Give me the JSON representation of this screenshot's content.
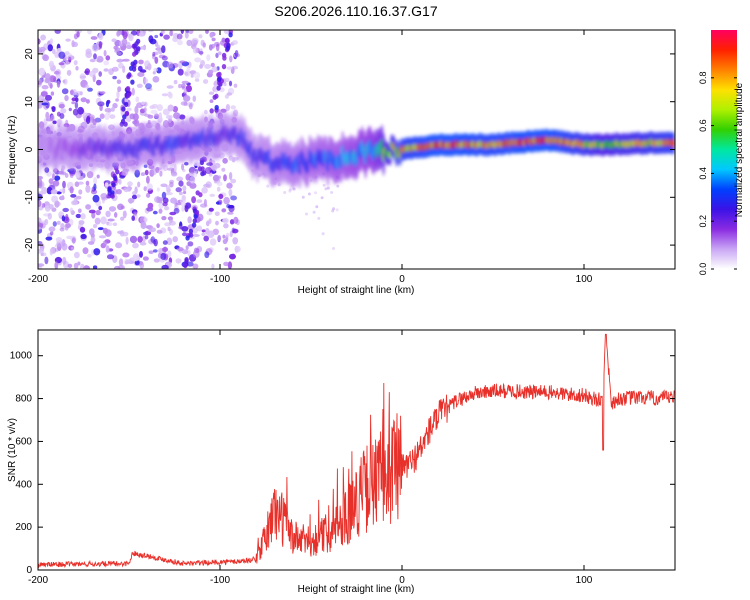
{
  "title": "S206.2026.110.16.37.G17",
  "chart_data": [
    {
      "type": "heatmap",
      "title": "S206.2026.110.16.37.G17",
      "xlabel": "Height of straight line (km)",
      "ylabel": "Frequency (Hz)",
      "xlim": [
        -200,
        150
      ],
      "ylim": [
        -25,
        25
      ],
      "xticks": [
        -200,
        -100,
        0,
        100
      ],
      "yticks": [
        -20,
        -10,
        0,
        10,
        20
      ],
      "colorbar": {
        "label": "Normalized spectral amplitude",
        "range": [
          0,
          1
        ],
        "ticks": [
          0.0,
          0.2,
          0.4,
          0.6,
          0.8
        ],
        "colors": [
          "#ffffff",
          "#c9a6f5",
          "#8a2be2",
          "#3a12e6",
          "#0040ff",
          "#00c8ff",
          "#00e8a0",
          "#32d000",
          "#b0f000",
          "#ffe000",
          "#ff8000",
          "#ff2000",
          "#ff0060"
        ]
      },
      "ridge": {
        "x": [
          -200,
          -150,
          -110,
          -100,
          -90,
          -80,
          -60,
          -40,
          -25,
          -15,
          0,
          20,
          50,
          80,
          100,
          110,
          150
        ],
        "frequency": [
          0,
          0,
          2,
          3,
          3,
          -2,
          -3,
          -2,
          -1,
          0,
          0,
          1,
          1,
          2,
          1,
          1,
          1.5
        ],
        "peak_amplitude": [
          0.1,
          0.3,
          0.3,
          0.25,
          0.3,
          0.3,
          0.35,
          0.4,
          0.45,
          0.5,
          0.85,
          0.95,
          0.9,
          0.95,
          0.8,
          0.7,
          0.85
        ]
      }
    },
    {
      "type": "line",
      "xlabel": "Height of straight line (km)",
      "ylabel": "SNR (10 * v/v)",
      "xlim": [
        -200,
        150
      ],
      "ylim": [
        0,
        1120
      ],
      "xticks": [
        -200,
        -100,
        0,
        100
      ],
      "yticks": [
        0,
        200,
        400,
        600,
        800,
        1000
      ],
      "series": [
        {
          "name": "SNR",
          "color": "#e8302a",
          "x": [
            -200,
            -150,
            -148,
            -120,
            -90,
            -80,
            -75,
            -70,
            -65,
            -60,
            -50,
            -40,
            -30,
            -25,
            -20,
            -15,
            -10,
            -5,
            0,
            5,
            10,
            15,
            20,
            30,
            40,
            50,
            60,
            70,
            80,
            90,
            100,
            105,
            110,
            112,
            115,
            120,
            130,
            140,
            150
          ],
          "y": [
            25,
            30,
            80,
            30,
            40,
            50,
            150,
            280,
            230,
            150,
            130,
            180,
            260,
            320,
            380,
            400,
            440,
            470,
            480,
            500,
            560,
            650,
            720,
            790,
            825,
            835,
            835,
            830,
            830,
            820,
            815,
            800,
            790,
            1100,
            780,
            800,
            805,
            800,
            805
          ]
        }
      ]
    }
  ]
}
